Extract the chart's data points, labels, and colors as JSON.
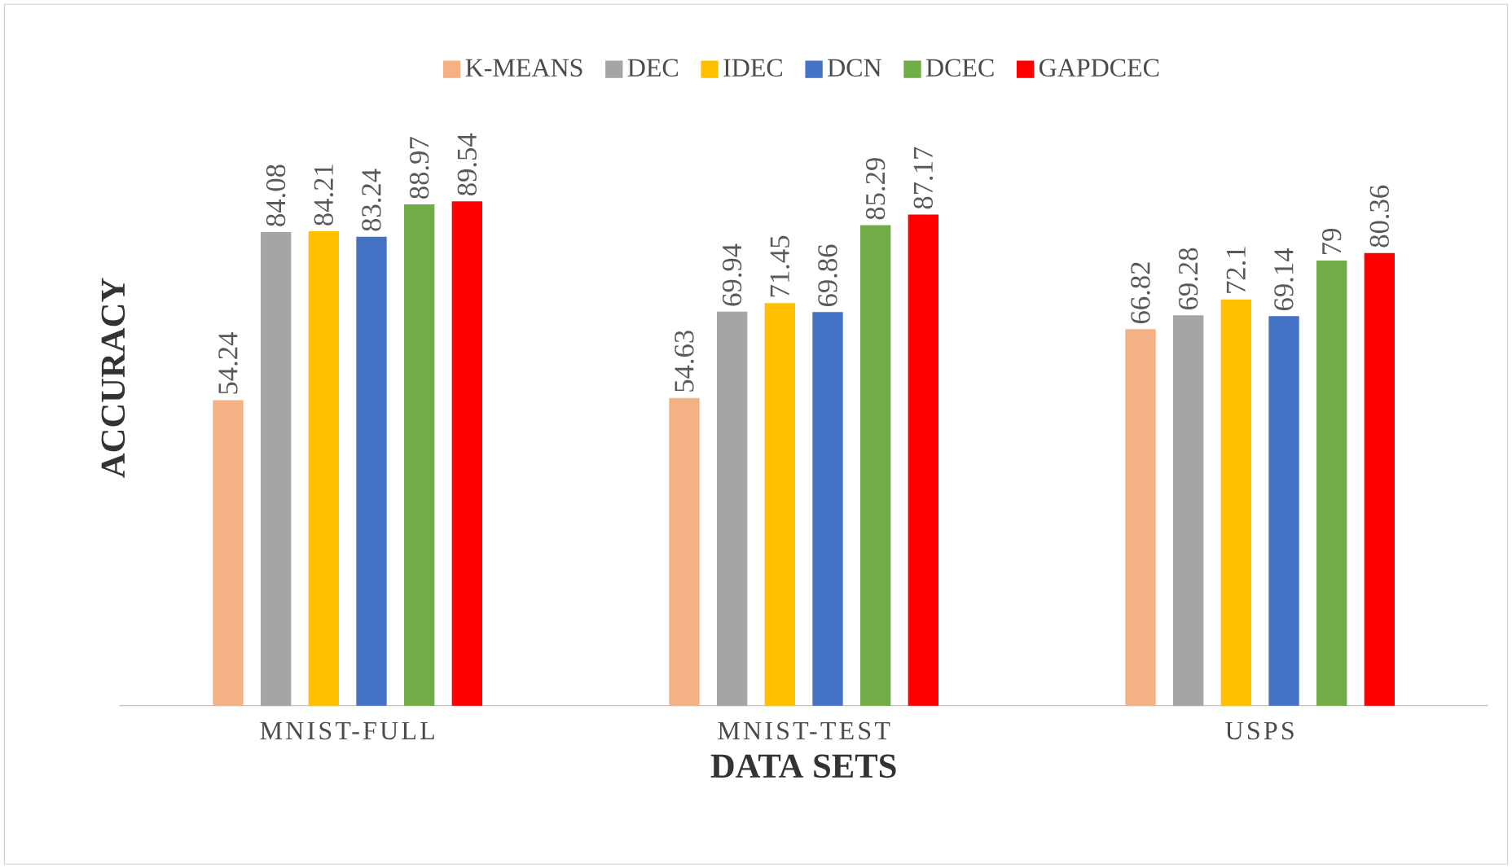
{
  "chart_data": {
    "type": "bar",
    "xlabel": "DATA SETS",
    "ylabel": "ACCURACY",
    "categories": [
      "MNIST-FULL",
      "MNIST-TEST",
      "USPS"
    ],
    "series": [
      {
        "name": "K-MEANS",
        "color": "#f4b183",
        "values": [
          54.24,
          54.63,
          66.82
        ]
      },
      {
        "name": "DEC",
        "color": "#a5a5a5",
        "values": [
          84.08,
          69.94,
          69.28
        ]
      },
      {
        "name": "IDEC",
        "color": "#ffc000",
        "values": [
          84.21,
          71.45,
          72.1
        ]
      },
      {
        "name": "DCN",
        "color": "#4472c4",
        "values": [
          83.24,
          69.86,
          69.14
        ]
      },
      {
        "name": "DCEC",
        "color": "#70ad47",
        "values": [
          88.97,
          85.29,
          79
        ]
      },
      {
        "name": "GAPDCEC",
        "color": "#ff0000",
        "values": [
          89.54,
          87.17,
          80.36
        ]
      }
    ],
    "data_labels": true,
    "legend": "top",
    "tick_labels": "x"
  }
}
